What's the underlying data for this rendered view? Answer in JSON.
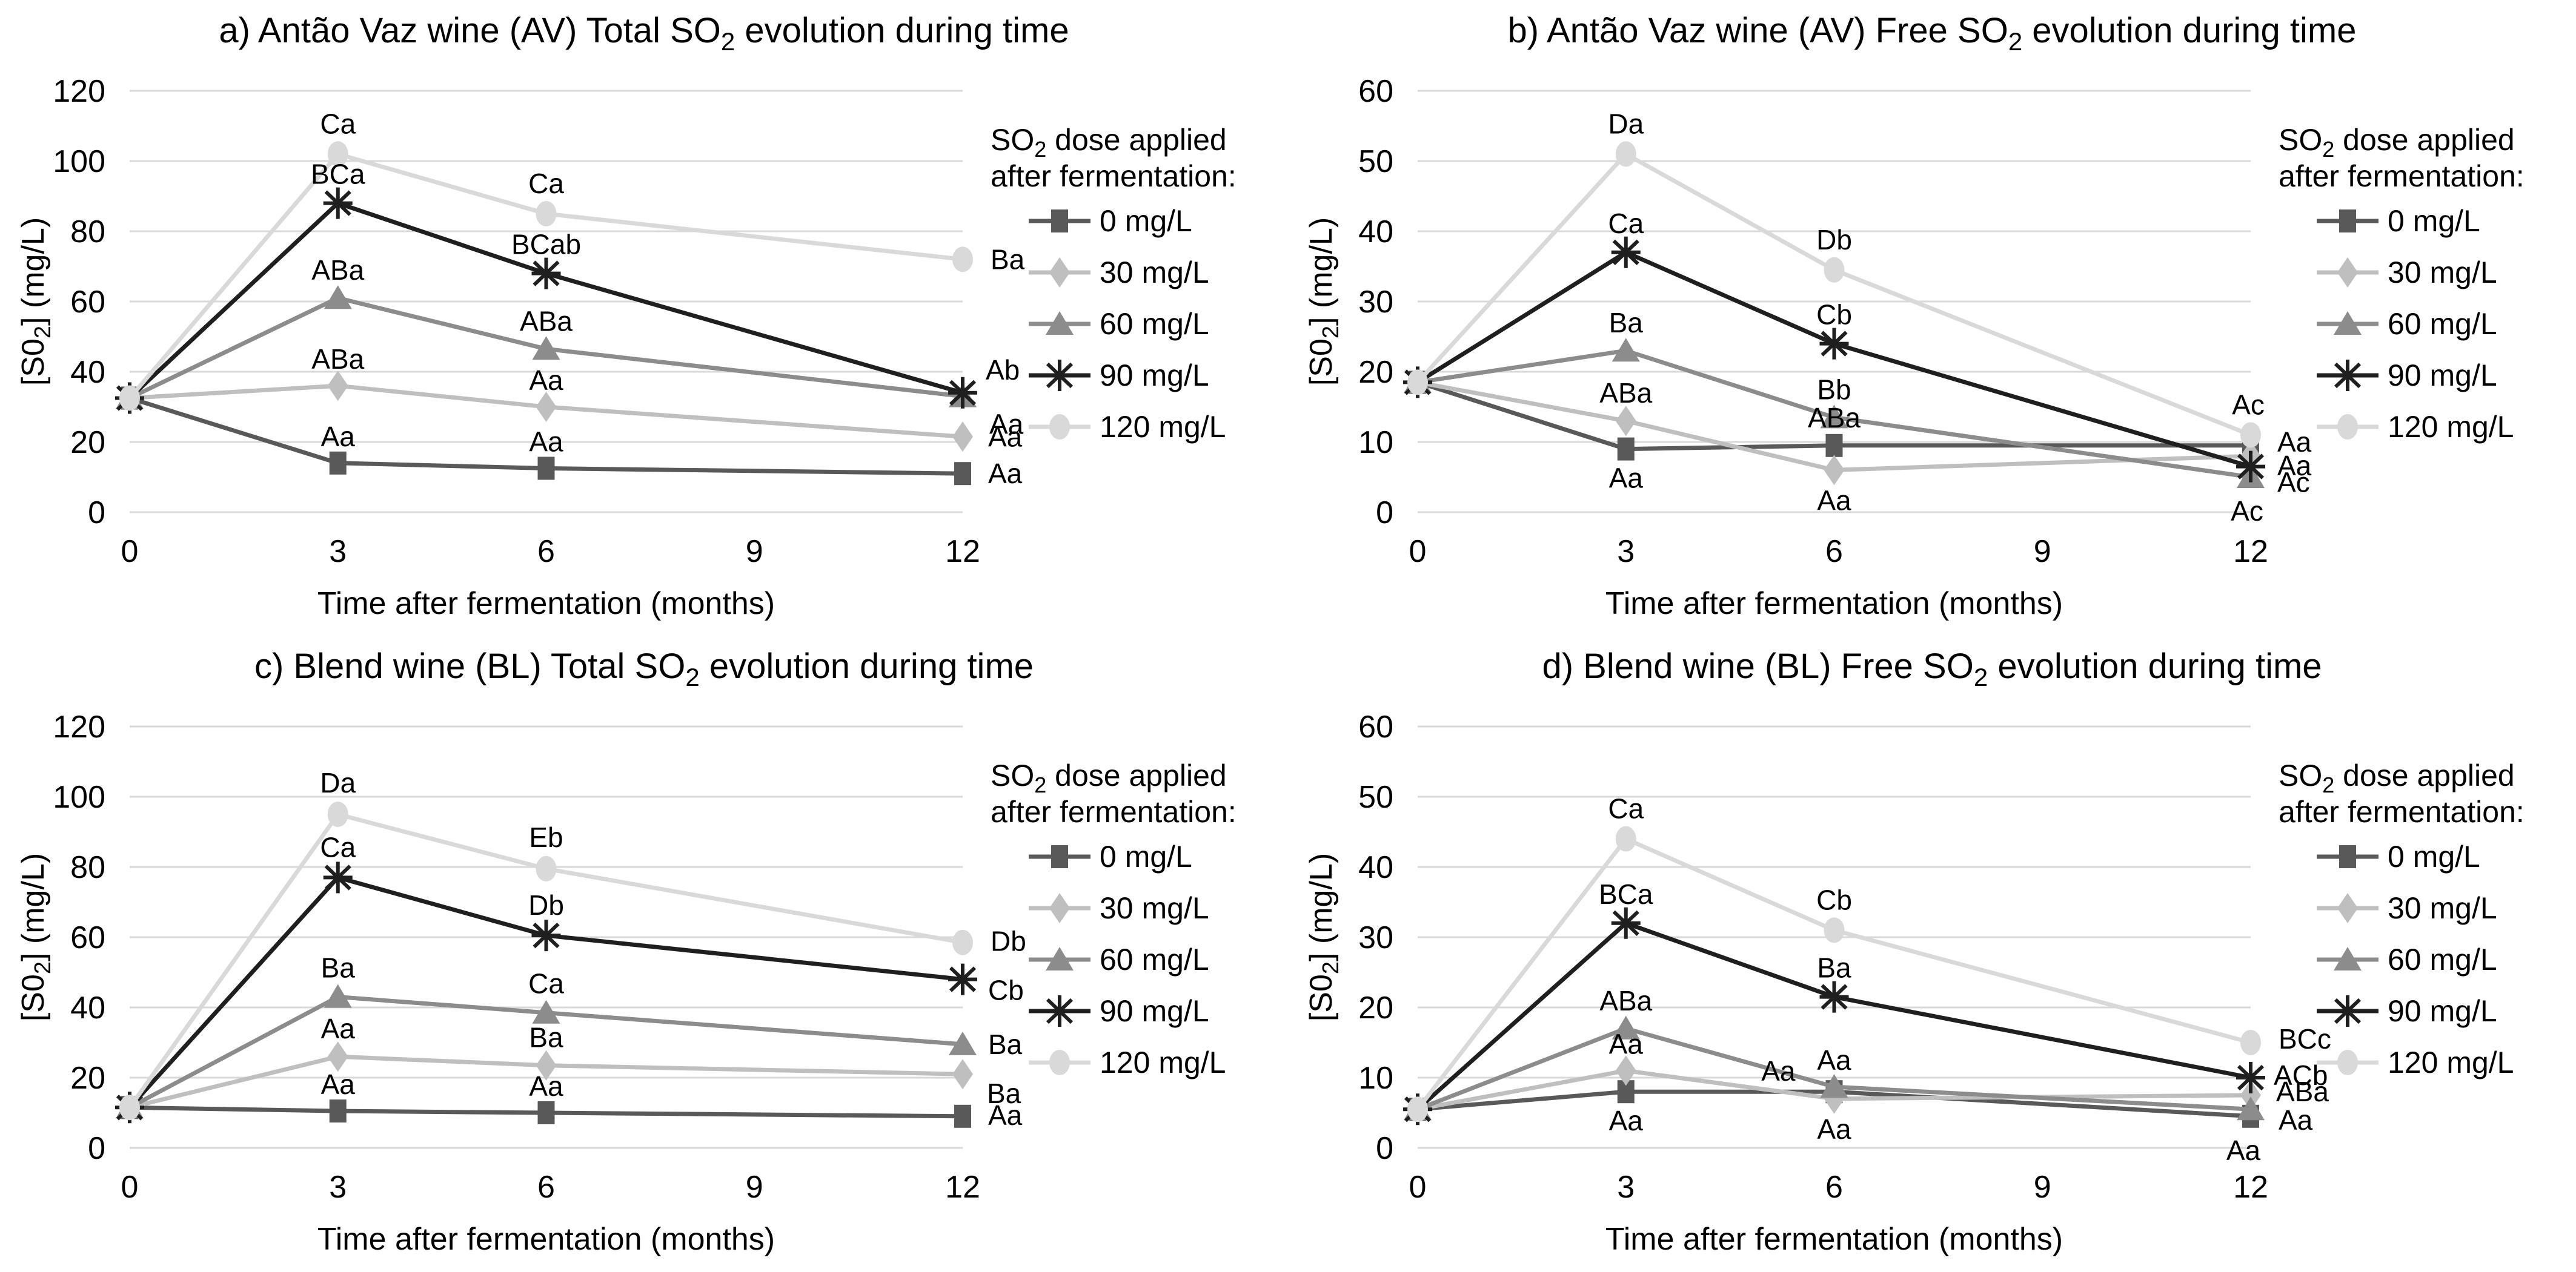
{
  "figure_bg": "#ffffff",
  "grid_color": "#d9d9d9",
  "text_color": "#000000",
  "chart_data": {
    "type": "line",
    "x_months": [
      0,
      3,
      6,
      12
    ],
    "xticks": [
      0,
      3,
      6,
      9,
      12
    ],
    "xlabel": "Time after fermentation (months)",
    "ylabel_parts": [
      {
        "t": "[S0"
      },
      {
        "t": "2",
        "sub": true
      },
      {
        "t": "] (mg/L)"
      }
    ],
    "legend_title_line1_parts": [
      {
        "t": "SO"
      },
      {
        "t": "2",
        "sub": true
      },
      {
        "t": " dose applied"
      }
    ],
    "legend_title_line2": "after fermentation:",
    "legend_entries": [
      "0 mg/L",
      "30 mg/L",
      "60 mg/L",
      "90 mg/L",
      "120 mg/L"
    ],
    "series_styles": [
      {
        "name": "0 mg/L",
        "marker": "square",
        "color": "#595959"
      },
      {
        "name": "30 mg/L",
        "marker": "diamond",
        "color": "#bfbfbf"
      },
      {
        "name": "60 mg/L",
        "marker": "triangle",
        "color": "#8c8c8c"
      },
      {
        "name": "90 mg/L",
        "marker": "star",
        "color": "#1f1f1f"
      },
      {
        "name": "120 mg/L",
        "marker": "circle",
        "color": "#d9d9d9"
      }
    ],
    "charts": [
      {
        "id": "a",
        "title_parts": [
          {
            "t": "a) Antão Vaz wine (AV) Total SO"
          },
          {
            "t": "2",
            "sub": true
          },
          {
            "t": " evolution during time"
          }
        ],
        "ylim": [
          0,
          120
        ],
        "yticks": [
          0,
          20,
          40,
          60,
          80,
          100,
          120
        ],
        "series": [
          {
            "name": "0 mg/L",
            "y": [
              32.5,
              14,
              12.5,
              11
            ],
            "labels": [
              {
                "m": 3,
                "t": "Aa",
                "dx": 0,
                "dy": -28
              },
              {
                "m": 6,
                "t": "Aa",
                "dx": 0,
                "dy": -28
              },
              {
                "m": 12,
                "t": "Aa",
                "dx": 42,
                "dy": 16,
                "a": "start"
              }
            ]
          },
          {
            "name": "30 mg/L",
            "y": [
              32.5,
              36,
              30,
              21.5
            ],
            "labels": [
              {
                "m": 3,
                "t": "ABa",
                "dx": 0,
                "dy": -28
              },
              {
                "m": 6,
                "t": "Aa",
                "dx": 0,
                "dy": -28
              },
              {
                "m": 12,
                "t": "Aa",
                "dx": 42,
                "dy": 16,
                "a": "start"
              }
            ]
          },
          {
            "name": "60 mg/L",
            "y": [
              32.5,
              61,
              46.5,
              33
            ],
            "labels": [
              {
                "m": 3,
                "t": "ABa",
                "dx": 0,
                "dy": -30
              },
              {
                "m": 6,
                "t": "ABa",
                "dx": 0,
                "dy": -30
              },
              {
                "m": 12,
                "t": "Aa",
                "dx": 44,
                "dy": 62,
                "a": "start"
              }
            ]
          },
          {
            "name": "90 mg/L",
            "y": [
              32.5,
              88,
              68,
              34
            ],
            "labels": [
              {
                "m": 3,
                "t": "BCa",
                "dx": 0,
                "dy": -32
              },
              {
                "m": 6,
                "t": "BCab",
                "dx": 0,
                "dy": -32
              },
              {
                "m": 12,
                "t": "Ab",
                "dx": 38,
                "dy": -22,
                "a": "start"
              }
            ]
          },
          {
            "name": "120 mg/L",
            "y": [
              32.5,
              102,
              85,
              72
            ],
            "labels": [
              {
                "m": 3,
                "t": "Ca",
                "dx": 0,
                "dy": -34
              },
              {
                "m": 6,
                "t": "Ca",
                "dx": 0,
                "dy": -34
              },
              {
                "m": 12,
                "t": "Ba",
                "dx": 46,
                "dy": 16,
                "a": "start"
              }
            ]
          }
        ]
      },
      {
        "id": "b",
        "title_parts": [
          {
            "t": "b) Antão Vaz wine (AV) Free SO"
          },
          {
            "t": "2",
            "sub": true
          },
          {
            "t": " evolution during time"
          }
        ],
        "ylim": [
          0,
          60
        ],
        "yticks": [
          0,
          10,
          20,
          30,
          40,
          50,
          60
        ],
        "series": [
          {
            "name": "0 mg/L",
            "y": [
              18.5,
              9,
              9.5,
              9.5
            ],
            "labels": [
              {
                "m": 3,
                "t": "Aa",
                "dx": 0,
                "dy": 64
              },
              {
                "m": 6,
                "t": "ABa",
                "dx": 0,
                "dy": -30
              },
              {
                "m": 12,
                "t": "Aa",
                "dx": 44,
                "dy": 10,
                "a": "start"
              }
            ]
          },
          {
            "name": "30 mg/L",
            "y": [
              18.5,
              13,
              6,
              8
            ],
            "labels": [
              {
                "m": 3,
                "t": "ABa",
                "dx": 0,
                "dy": -30
              },
              {
                "m": 6,
                "t": "Aa",
                "dx": 0,
                "dy": 66
              },
              {
                "m": 12,
                "t": "Aa",
                "dx": 44,
                "dy": 32,
                "a": "start"
              }
            ]
          },
          {
            "name": "60 mg/L",
            "y": [
              18.5,
              23,
              13.5,
              5
            ],
            "labels": [
              {
                "m": 3,
                "t": "Ba",
                "dx": 0,
                "dy": -30
              },
              {
                "m": 6,
                "t": "Bb",
                "dx": 0,
                "dy": -30
              },
              {
                "m": 12,
                "t": "Ac",
                "dx": -6,
                "dy": 72
              }
            ]
          },
          {
            "name": "90 mg/L",
            "y": [
              18.5,
              37,
              24,
              6.5
            ],
            "labels": [
              {
                "m": 3,
                "t": "Ca",
                "dx": 0,
                "dy": -32
              },
              {
                "m": 6,
                "t": "Cb",
                "dx": 0,
                "dy": -32
              },
              {
                "m": 12,
                "t": "Ac",
                "dx": 44,
                "dy": 42,
                "a": "start"
              }
            ]
          },
          {
            "name": "120 mg/L",
            "y": [
              18.5,
              51,
              34.5,
              11
            ],
            "labels": [
              {
                "m": 3,
                "t": "Da",
                "dx": 0,
                "dy": -34
              },
              {
                "m": 6,
                "t": "Db",
                "dx": 0,
                "dy": -34
              },
              {
                "m": 12,
                "t": "Ac",
                "dx": -4,
                "dy": -34
              }
            ]
          }
        ]
      },
      {
        "id": "c",
        "title_parts": [
          {
            "t": "c) Blend wine (BL) Total SO"
          },
          {
            "t": "2",
            "sub": true
          },
          {
            "t": " evolution during time"
          }
        ],
        "ylim": [
          0,
          120
        ],
        "yticks": [
          0,
          20,
          40,
          60,
          80,
          100,
          120
        ],
        "series": [
          {
            "name": "0 mg/L",
            "y": [
              11.5,
              10.5,
              10,
              9
            ],
            "labels": [
              {
                "m": 3,
                "t": "Aa",
                "dx": 0,
                "dy": -28
              },
              {
                "m": 6,
                "t": "Aa",
                "dx": 0,
                "dy": -28
              },
              {
                "m": 12,
                "t": "Aa",
                "dx": 42,
                "dy": 14,
                "a": "start"
              }
            ]
          },
          {
            "name": "30 mg/L",
            "y": [
              11.5,
              26,
              23.5,
              21
            ],
            "labels": [
              {
                "m": 3,
                "t": "Aa",
                "dx": 0,
                "dy": -30
              },
              {
                "m": 6,
                "t": "Ba",
                "dx": 0,
                "dy": -30
              },
              {
                "m": 12,
                "t": "Ba",
                "dx": 40,
                "dy": 48,
                "a": "start"
              }
            ]
          },
          {
            "name": "60 mg/L",
            "y": [
              11.5,
              43,
              38.5,
              29.5
            ],
            "labels": [
              {
                "m": 3,
                "t": "Ba",
                "dx": 0,
                "dy": -32
              },
              {
                "m": 6,
                "t": "Ca",
                "dx": 0,
                "dy": -32
              },
              {
                "m": 12,
                "t": "Ba",
                "dx": 42,
                "dy": 16,
                "a": "start"
              }
            ]
          },
          {
            "name": "90 mg/L",
            "y": [
              11.5,
              77,
              60.5,
              48
            ],
            "labels": [
              {
                "m": 3,
                "t": "Ca",
                "dx": 0,
                "dy": -34
              },
              {
                "m": 6,
                "t": "Db",
                "dx": 0,
                "dy": -34
              },
              {
                "m": 12,
                "t": "Cb",
                "dx": 42,
                "dy": 34,
                "a": "start"
              }
            ]
          },
          {
            "name": "120 mg/L",
            "y": [
              11.5,
              95,
              79.5,
              58.5
            ],
            "labels": [
              {
                "m": 3,
                "t": "Da",
                "dx": 0,
                "dy": -36
              },
              {
                "m": 6,
                "t": "Eb",
                "dx": 0,
                "dy": -36
              },
              {
                "m": 12,
                "t": "Db",
                "dx": 46,
                "dy": 14,
                "a": "start"
              }
            ]
          }
        ]
      },
      {
        "id": "d",
        "title_parts": [
          {
            "t": "d) Blend wine (BL) Free SO"
          },
          {
            "t": "2",
            "sub": true
          },
          {
            "t": " evolution during time"
          }
        ],
        "ylim": [
          0,
          60
        ],
        "yticks": [
          0,
          10,
          20,
          30,
          40,
          50,
          60
        ],
        "series": [
          {
            "name": "0 mg/L",
            "y": [
              5.5,
              8,
              8,
              4.5
            ],
            "labels": [
              {
                "m": 3,
                "t": "Aa",
                "dx": 0,
                "dy": 64
              },
              {
                "m": 6,
                "t": "Aa",
                "dx": -64,
                "dy": -18,
                "a": "end"
              },
              {
                "m": 12,
                "t": "Aa",
                "dx": -12,
                "dy": 72
              }
            ]
          },
          {
            "name": "30 mg/L",
            "y": [
              5.5,
              11,
              7,
              7.5
            ],
            "labels": [
              {
                "m": 3,
                "t": "Aa",
                "dx": 0,
                "dy": -28
              },
              {
                "m": 6,
                "t": "Aa",
                "dx": 0,
                "dy": 66
              },
              {
                "m": 12,
                "t": "ABa",
                "dx": 42,
                "dy": 10,
                "a": "start"
              }
            ]
          },
          {
            "name": "60 mg/L",
            "y": [
              5.5,
              17,
              8.7,
              5.5
            ],
            "labels": [
              {
                "m": 3,
                "t": "ABa",
                "dx": 0,
                "dy": -30
              },
              {
                "m": 6,
                "t": "Aa",
                "dx": 0,
                "dy": -28
              },
              {
                "m": 12,
                "t": "Aa",
                "dx": 46,
                "dy": 34,
                "a": "start"
              }
            ]
          },
          {
            "name": "90 mg/L",
            "y": [
              5.5,
              32,
              21.5,
              10
            ],
            "labels": [
              {
                "m": 3,
                "t": "BCa",
                "dx": 0,
                "dy": -32
              },
              {
                "m": 6,
                "t": "Ba",
                "dx": 0,
                "dy": -32
              },
              {
                "m": 12,
                "t": "ACb",
                "dx": 38,
                "dy": 12,
                "a": "start"
              }
            ]
          },
          {
            "name": "120 mg/L",
            "y": [
              5.5,
              44,
              31,
              15
            ],
            "labels": [
              {
                "m": 3,
                "t": "Ca",
                "dx": 0,
                "dy": -34
              },
              {
                "m": 6,
                "t": "Cb",
                "dx": 0,
                "dy": -34
              },
              {
                "m": 12,
                "t": "BCc",
                "dx": 46,
                "dy": 10,
                "a": "start"
              }
            ]
          }
        ]
      }
    ]
  }
}
